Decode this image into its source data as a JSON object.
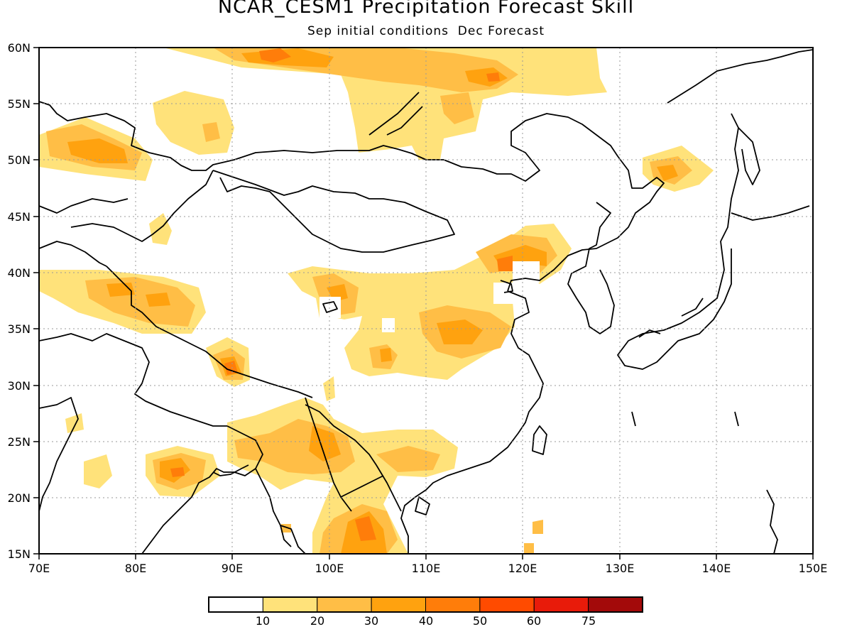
{
  "title": "NCAR_CESM1 Precipitation Forecast Skill",
  "subtitle": "Sep initial conditions  Dec Forecast",
  "map": {
    "lon_range": [
      70,
      150
    ],
    "lat_range": [
      15,
      60
    ],
    "grid": "dotted",
    "lon_ticks": [
      "70E",
      "80E",
      "90E",
      "100E",
      "110E",
      "120E",
      "130E",
      "140E",
      "150E"
    ],
    "lat_ticks": [
      "15N",
      "20N",
      "25N",
      "30N",
      "35N",
      "40N",
      "45N",
      "50N",
      "55N",
      "60N"
    ]
  },
  "colorbar": {
    "levels": [
      "10",
      "20",
      "30",
      "40",
      "50",
      "60",
      "75"
    ],
    "colors": [
      "#ffffff",
      "#ffe27a",
      "#ffbe46",
      "#ffa20f",
      "#ff7d0a",
      "#ff4b00",
      "#e81b0a",
      "#a30a0a"
    ]
  }
}
